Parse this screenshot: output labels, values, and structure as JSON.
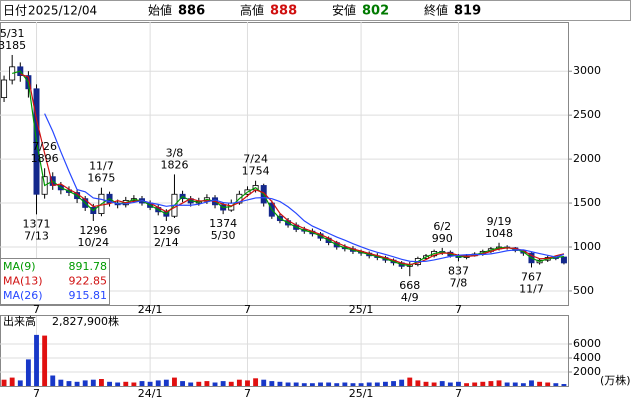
{
  "header": {
    "date_label": "日付",
    "date": "2025/12/04",
    "labels": [
      "始値",
      "高値",
      "安値",
      "終値"
    ]
  },
  "chart_data": {
    "type": "candlestick",
    "categories": [
      null,
      null,
      null,
      null,
      "7",
      null,
      null,
      null,
      null,
      null,
      null,
      null,
      null,
      null,
      null,
      null,
      null,
      null,
      "24/1",
      null,
      null,
      null,
      null,
      null,
      null,
      null,
      null,
      null,
      null,
      null,
      "7",
      null,
      null,
      null,
      null,
      null,
      null,
      null,
      null,
      null,
      null,
      null,
      null,
      null,
      "25/1",
      null,
      null,
      null,
      null,
      null,
      null,
      null,
      null,
      null,
      null,
      null,
      "7",
      null,
      null,
      null,
      null,
      null,
      null,
      null,
      null,
      null,
      null,
      null,
      null,
      null
    ],
    "candles": [
      [
        2700,
        2950,
        2650,
        2900
      ],
      [
        2900,
        3185,
        2850,
        3050
      ],
      [
        3050,
        3100,
        2880,
        2950
      ],
      [
        2950,
        3000,
        2700,
        2800
      ],
      [
        2800,
        2850,
        1371,
        1600
      ],
      [
        1600,
        1896,
        1550,
        1800
      ],
      [
        1800,
        1850,
        1650,
        1700
      ],
      [
        1700,
        1740,
        1600,
        1650
      ],
      [
        1650,
        1690,
        1580,
        1620
      ],
      [
        1620,
        1650,
        1500,
        1550
      ],
      [
        1550,
        1580,
        1410,
        1450
      ],
      [
        1450,
        1490,
        1296,
        1380
      ],
      [
        1380,
        1675,
        1350,
        1600
      ],
      [
        1600,
        1630,
        1460,
        1500
      ],
      [
        1500,
        1540,
        1440,
        1480
      ],
      [
        1480,
        1570,
        1450,
        1530
      ],
      [
        1530,
        1590,
        1500,
        1550
      ],
      [
        1550,
        1580,
        1470,
        1500
      ],
      [
        1500,
        1530,
        1420,
        1450
      ],
      [
        1450,
        1480,
        1360,
        1400
      ],
      [
        1400,
        1430,
        1296,
        1350
      ],
      [
        1350,
        1826,
        1330,
        1600
      ],
      [
        1600,
        1640,
        1510,
        1550
      ],
      [
        1550,
        1580,
        1460,
        1500
      ],
      [
        1500,
        1560,
        1470,
        1520
      ],
      [
        1520,
        1600,
        1490,
        1560
      ],
      [
        1560,
        1590,
        1440,
        1480
      ],
      [
        1480,
        1510,
        1374,
        1420
      ],
      [
        1420,
        1540,
        1400,
        1500
      ],
      [
        1500,
        1640,
        1480,
        1600
      ],
      [
        1600,
        1690,
        1570,
        1650
      ],
      [
        1650,
        1754,
        1620,
        1700
      ],
      [
        1700,
        1720,
        1460,
        1500
      ],
      [
        1500,
        1530,
        1320,
        1350
      ],
      [
        1350,
        1380,
        1270,
        1300
      ],
      [
        1300,
        1330,
        1220,
        1250
      ],
      [
        1250,
        1280,
        1170,
        1200
      ],
      [
        1200,
        1230,
        1150,
        1180
      ],
      [
        1180,
        1210,
        1120,
        1150
      ],
      [
        1150,
        1170,
        1070,
        1100
      ],
      [
        1100,
        1120,
        1020,
        1050
      ],
      [
        1050,
        1070,
        970,
        1000
      ],
      [
        1000,
        1030,
        950,
        980
      ],
      [
        980,
        1010,
        920,
        950
      ],
      [
        950,
        970,
        900,
        930
      ],
      [
        930,
        950,
        870,
        900
      ],
      [
        900,
        930,
        850,
        880
      ],
      [
        880,
        900,
        820,
        850
      ],
      [
        850,
        870,
        790,
        820
      ],
      [
        820,
        840,
        750,
        780
      ],
      [
        780,
        830,
        668,
        800
      ],
      [
        800,
        890,
        780,
        870
      ],
      [
        870,
        920,
        850,
        900
      ],
      [
        900,
        970,
        880,
        950
      ],
      [
        950,
        990,
        910,
        940
      ],
      [
        940,
        960,
        880,
        900
      ],
      [
        900,
        920,
        837,
        880
      ],
      [
        880,
        920,
        860,
        900
      ],
      [
        900,
        940,
        890,
        920
      ],
      [
        920,
        970,
        900,
        950
      ],
      [
        950,
        1000,
        930,
        980
      ],
      [
        980,
        1048,
        960,
        1000
      ],
      [
        1000,
        1020,
        970,
        990
      ],
      [
        990,
        1000,
        940,
        960
      ],
      [
        960,
        970,
        900,
        930
      ],
      [
        930,
        940,
        767,
        820
      ],
      [
        820,
        870,
        800,
        850
      ],
      [
        850,
        900,
        830,
        880
      ],
      [
        880,
        890,
        850,
        870
      ],
      [
        886,
        888,
        802,
        819
      ]
    ],
    "up_color": "#ffffff",
    "down_color": "#14288c",
    "edge_color": "#000000",
    "ylim": [
      340,
      3560
    ],
    "yticks": [
      500,
      1000,
      1500,
      2000,
      2500,
      3000
    ],
    "grid": true,
    "series": [
      {
        "name": "MA(9)",
        "color": "#009a00",
        "values": [
          null,
          2975,
          3000,
          2875,
          2200,
          1700,
          1750,
          1675,
          1635,
          1585,
          1500,
          1415,
          1490,
          1550,
          1490,
          1505,
          1540,
          1525,
          1475,
          1425,
          1375,
          1475,
          1575,
          1525,
          1510,
          1540,
          1520,
          1450,
          1460,
          1550,
          1625,
          1675,
          1600,
          1425,
          1325,
          1275,
          1225,
          1190,
          1165,
          1125,
          1075,
          1025,
          990,
          965,
          940,
          915,
          890,
          865,
          835,
          800,
          790,
          835,
          885,
          925,
          945,
          920,
          890,
          890,
          910,
          935,
          965,
          990,
          995,
          975,
          945,
          875,
          835,
          865,
          880,
          891.78
        ]
      },
      {
        "name": "MA(13)",
        "color": "#d01010",
        "values": [
          null,
          null,
          2967,
          2933,
          2450,
          2067,
          1700,
          1717,
          1657,
          1607,
          1540,
          1460,
          1477,
          1493,
          1527,
          1503,
          1520,
          1527,
          1500,
          1450,
          1400,
          1450,
          1500,
          1550,
          1523,
          1527,
          1520,
          1487,
          1467,
          1507,
          1583,
          1650,
          1617,
          1517,
          1383,
          1300,
          1250,
          1210,
          1177,
          1143,
          1100,
          1050,
          1010,
          977,
          953,
          927,
          903,
          877,
          850,
          817,
          800,
          817,
          857,
          907,
          930,
          930,
          907,
          893,
          900,
          923,
          950,
          977,
          990,
          983,
          960,
          903,
          867,
          870,
          900,
          922.85
        ]
      },
      {
        "name": "MA(26)",
        "color": "#2848ff",
        "values": [
          null,
          null,
          null,
          null,
          null,
          2517,
          2317,
          2083,
          1862,
          1653,
          1628,
          1558,
          1542,
          1517,
          1493,
          1490,
          1507,
          1527,
          1502,
          1485,
          1463,
          1475,
          1475,
          1475,
          1487,
          1513,
          1535,
          1505,
          1497,
          1513,
          1535,
          1558,
          1562,
          1550,
          1517,
          1458,
          1383,
          1297,
          1238,
          1197,
          1155,
          1113,
          1077,
          1038,
          1002,
          968,
          940,
          915,
          888,
          860,
          838,
          833,
          837,
          853,
          873,
          893,
          907,
          912,
          915,
          915,
          922,
          938,
          957,
          967,
          968,
          947,
          925,
          905,
          885,
          915.81
        ]
      }
    ],
    "annotations": [
      {
        "date": "5/31",
        "value": 3185
      },
      {
        "date": "7/13",
        "value": 1371
      },
      {
        "date": "7/26",
        "value": 1896
      },
      {
        "date": "10/24",
        "value": 1296
      },
      {
        "date": "11/7",
        "value": 1675
      },
      {
        "date": "2/14",
        "value": 1296
      },
      {
        "date": "3/8",
        "value": 1826
      },
      {
        "date": "5/30",
        "value": 1374
      },
      {
        "date": "7/24",
        "value": 1754
      },
      {
        "date": "4/9",
        "value": 668
      },
      {
        "date": "6/2",
        "value": 990
      },
      {
        "date": "7/8",
        "value": 837
      },
      {
        "date": "9/19",
        "value": 1048
      },
      {
        "date": "11/7",
        "value": 767
      }
    ],
    "volume": {
      "title": "出来高",
      "latest": "2,827,900株",
      "unit": "(万株)",
      "up_color": "#e01010",
      "down_color": "#1838c8",
      "ylim": [
        0,
        10000
      ],
      "yticks": [
        2000,
        4000,
        6000
      ],
      "values": [
        900,
        1200,
        800,
        3800,
        7300,
        7200,
        1500,
        900,
        700,
        600,
        800,
        900,
        1000,
        600,
        500,
        600,
        500,
        700,
        600,
        800,
        900,
        1200,
        700,
        500,
        600,
        700,
        500,
        700,
        600,
        900,
        800,
        1100,
        900,
        700,
        600,
        500,
        500,
        400,
        400,
        500,
        500,
        400,
        500,
        400,
        400,
        500,
        500,
        600,
        700,
        900,
        1200,
        800,
        600,
        500,
        700,
        500,
        600,
        400,
        500,
        600,
        700,
        800,
        500,
        500,
        400,
        800,
        600,
        500,
        400,
        282.79
      ]
    }
  }
}
